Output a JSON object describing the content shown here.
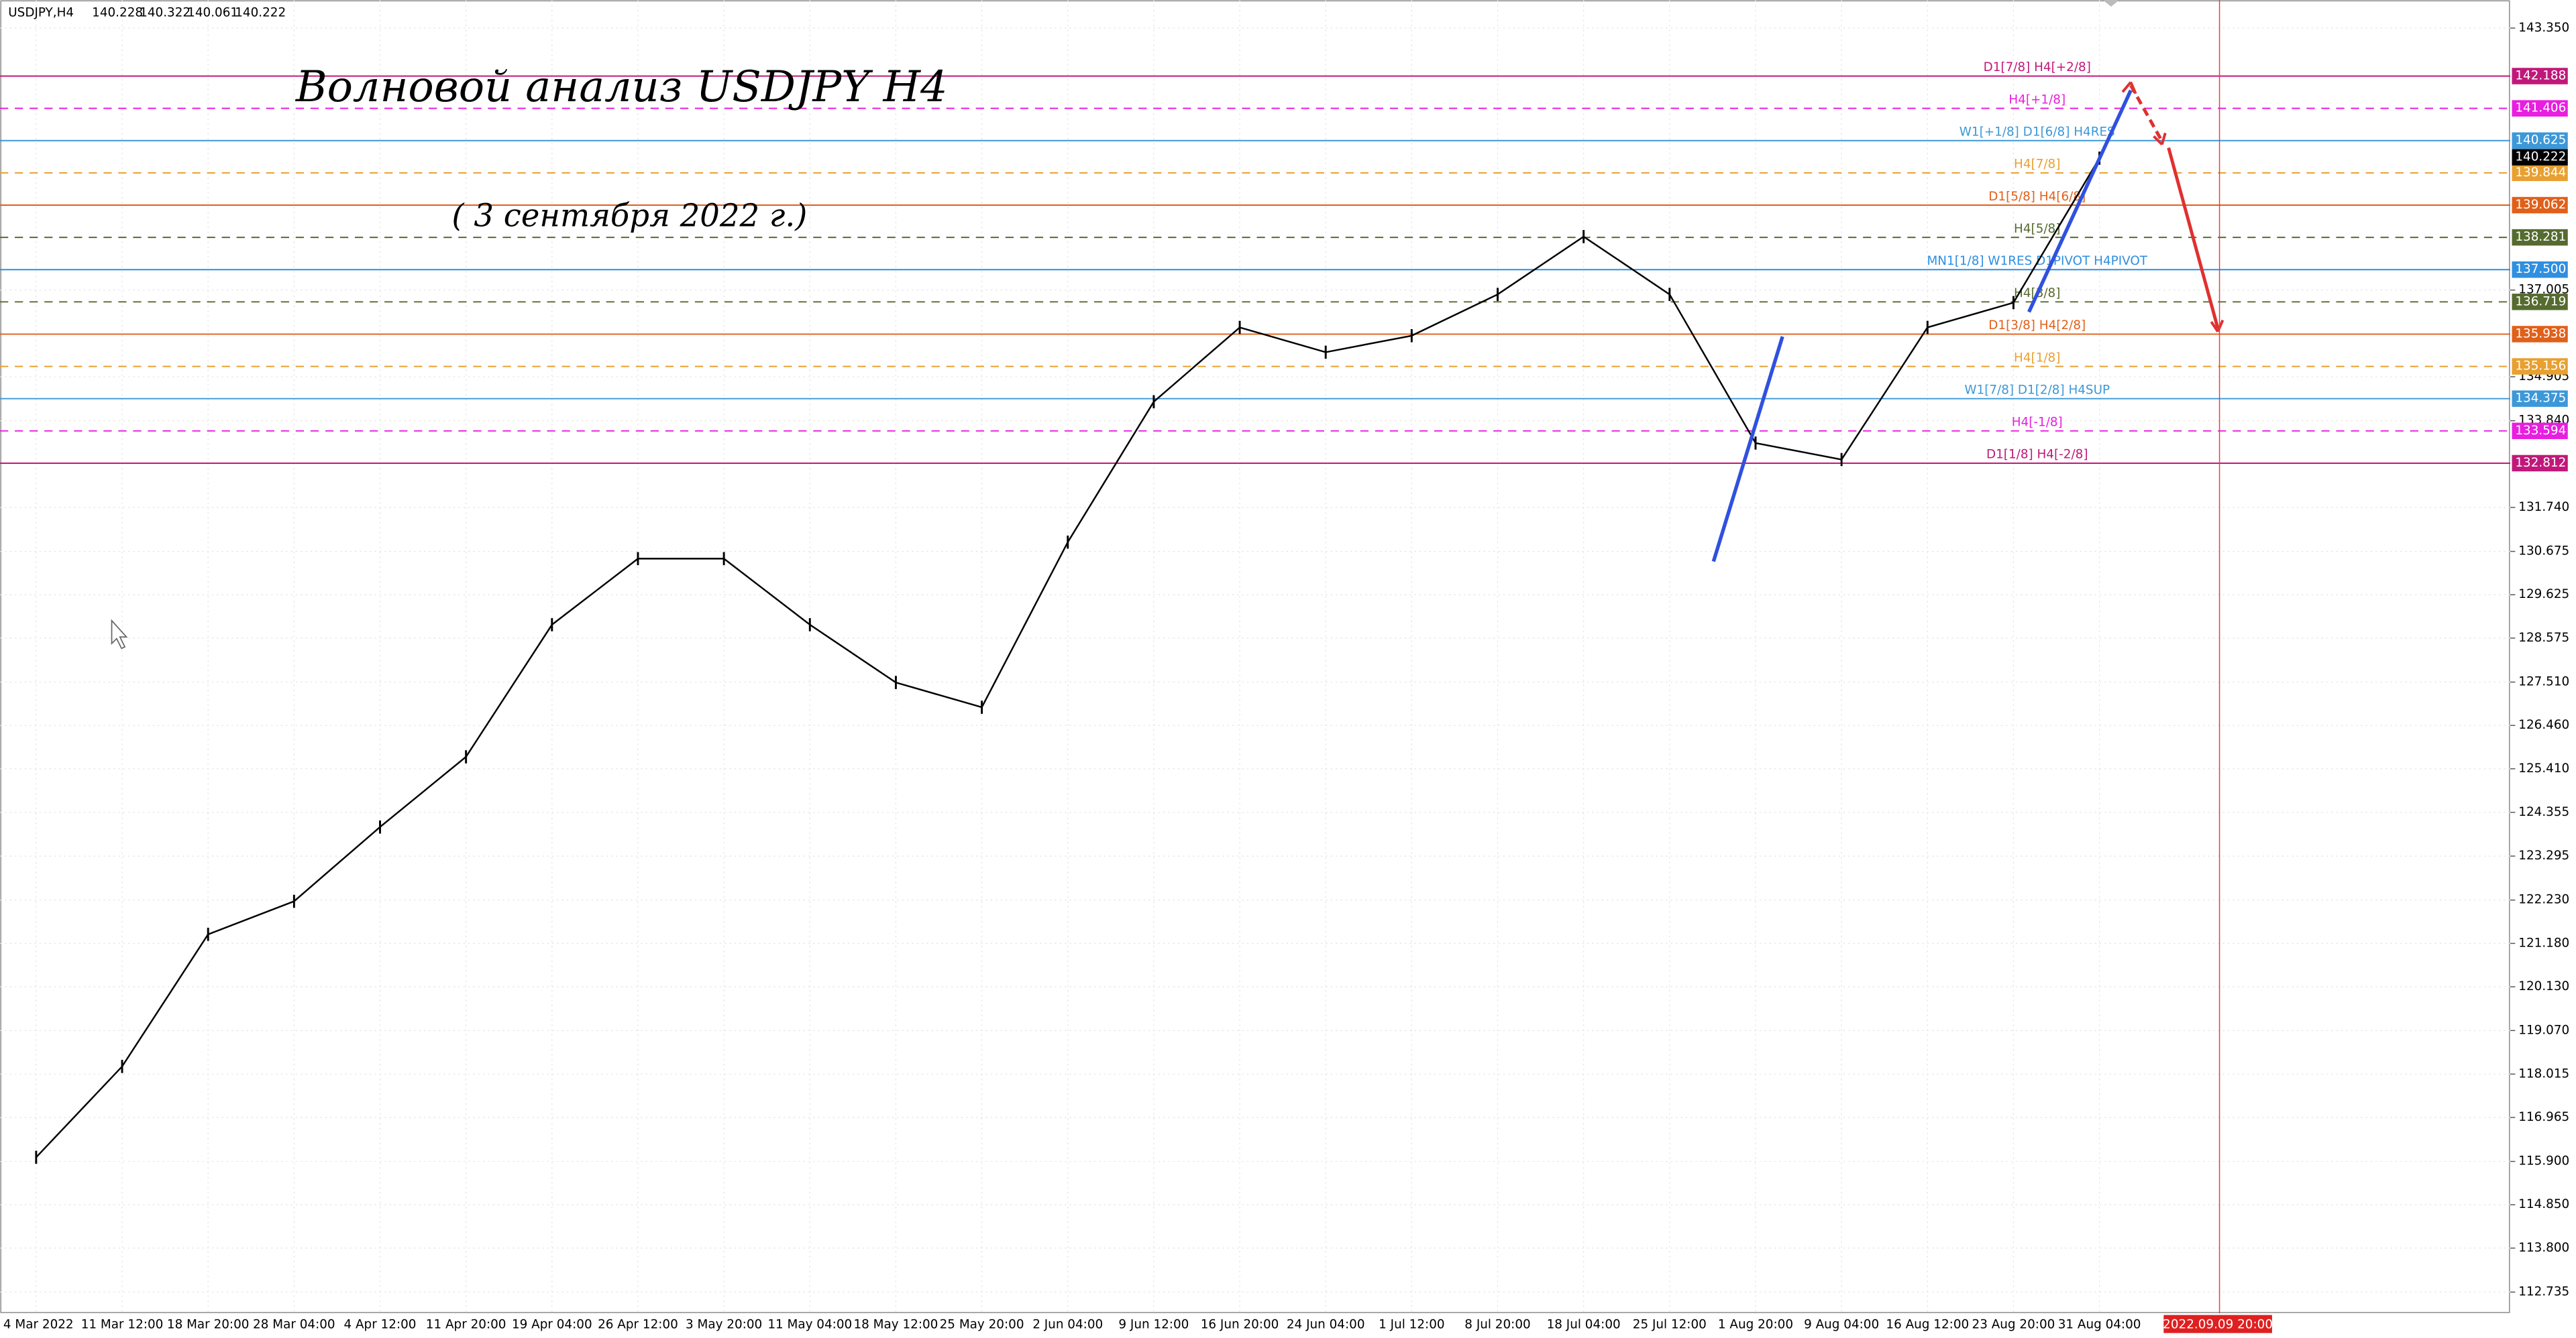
{
  "header": {
    "symbol": "USDJPY,H4",
    "ohlc": [
      140.228,
      140.322,
      140.061,
      140.222
    ]
  },
  "chart_data": {
    "type": "line",
    "title": "Волновой анализ USDJPY H4",
    "subtitle": "( 3 сентября 2022 г.)",
    "categories": [
      "4 Mar 2022",
      "11 Mar 12:00",
      "18 Mar 20:00",
      "28 Mar 04:00",
      "4 Apr 12:00",
      "11 Apr 20:00",
      "19 Apr 04:00",
      "26 Apr 12:00",
      "3 May 20:00",
      "11 May 04:00",
      "18 May 12:00",
      "25 May 20:00",
      "2 Jun 04:00",
      "9 Jun 12:00",
      "16 Jun 20:00",
      "24 Jun 04:00",
      "1 Jul 12:00",
      "8 Jul 20:00",
      "18 Jul 04:00",
      "25 Jul 12:00",
      "1 Aug 20:00",
      "9 Aug 04:00",
      "16 Aug 12:00",
      "23 Aug 20:00",
      "31 Aug 04:00"
    ],
    "series": [
      {
        "name": "USDJPY,H4",
        "color": "#000000",
        "values": [
          116.0,
          118.2,
          121.4,
          122.2,
          124.0,
          125.7,
          128.9,
          130.5,
          130.5,
          128.9,
          127.5,
          126.9,
          130.9,
          134.3,
          136.1,
          135.5,
          135.9,
          136.9,
          138.3,
          136.9,
          133.3,
          132.9,
          136.1,
          136.7,
          140.2
        ]
      }
    ],
    "current_price": 140.222,
    "cursor_time": "2022.09.09 20:00",
    "ylim": [
      112.22,
      144.03
    ],
    "yticks": [
      {
        "value": 143.35,
        "label": "143.350"
      },
      137.005,
      134.905,
      {
        "value": 133.84,
        "label": "133.840"
      },
      {
        "value": 131.74,
        "label": "131.740"
      },
      130.675,
      129.625,
      128.575,
      {
        "value": 127.51,
        "label": "127.510"
      },
      {
        "value": 126.46,
        "label": "126.460"
      },
      {
        "value": 125.41,
        "label": "125.410"
      },
      124.355,
      123.295,
      {
        "value": 122.23,
        "label": "122.230"
      },
      {
        "value": 121.18,
        "label": "121.180"
      },
      {
        "value": 120.13,
        "label": "120.130"
      },
      {
        "value": 119.07,
        "label": "119.070"
      },
      118.015,
      116.965,
      {
        "value": 115.9,
        "label": "115.900"
      },
      {
        "value": 114.85,
        "label": "114.850"
      },
      {
        "value": 113.8,
        "label": "113.800"
      },
      112.735
    ],
    "grid": true,
    "levels": [
      {
        "name": "D1[7/8] H4[+2/8]",
        "value": 142.188,
        "color": "#c0187a",
        "dashed": false
      },
      {
        "name": "H4[+1/8]",
        "value": 141.406,
        "color": "#e81ee0",
        "dashed": true
      },
      {
        "name": "W1[+1/8] D1[6/8] H4RES",
        "value": 140.625,
        "color": "#3c98d8",
        "dashed": false
      },
      {
        "name": "H4[7/8]",
        "value": 139.844,
        "color": "#e8a030",
        "dashed": true
      },
      {
        "name": "D1[5/8] H4[6/8]",
        "value": 139.062,
        "color": "#e0601a",
        "dashed": false
      },
      {
        "name": "H4[5/8]",
        "value": 138.281,
        "color": "#556b2f",
        "dashed": true
      },
      {
        "name": "MN1[1/8] W1RES D1PIVOT H4PIVOT",
        "value": 137.5,
        "value_label": "137.500",
        "color": "#2f8fe0",
        "dashed": false
      },
      {
        "name": "H4[3/8]",
        "value": 136.719,
        "color": "#556b2f",
        "dashed": true
      },
      {
        "name": "D1[3/8] H4[2/8]",
        "value": 135.938,
        "color": "#e0601a",
        "dashed": false
      },
      {
        "name": "H4[1/8]",
        "value": 135.156,
        "color": "#e8a030",
        "dashed": true
      },
      {
        "name": "W1[7/8] D1[2/8] H4SUP",
        "value": 134.375,
        "color": "#3c98d8",
        "dashed": false
      },
      {
        "name": "H4[-1/8]",
        "value": 133.594,
        "color": "#e81ee0",
        "dashed": true
      },
      {
        "name": "D1[1/8] H4[-2/8]",
        "value": 132.812,
        "color": "#c0187a",
        "dashed": false
      }
    ]
  }
}
